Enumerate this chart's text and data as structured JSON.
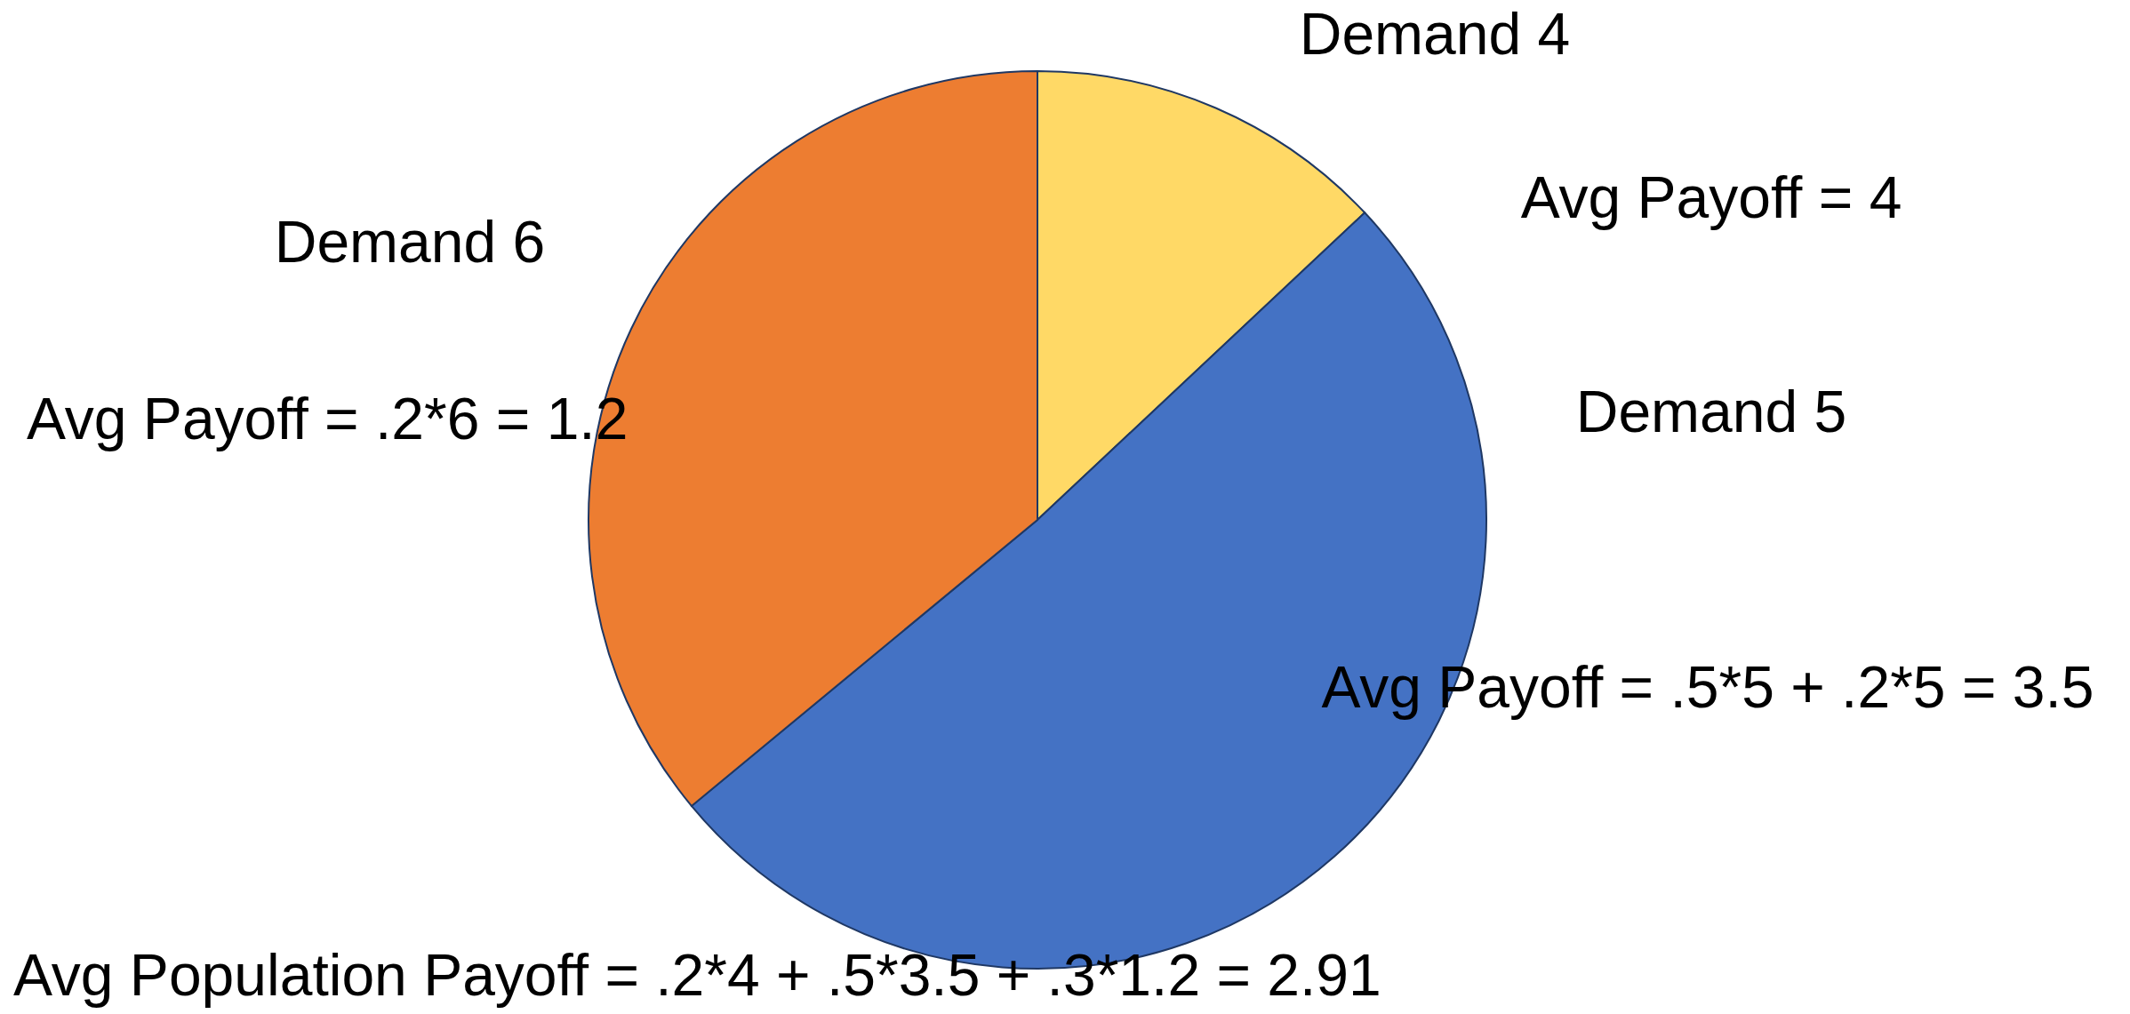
{
  "chart_data": {
    "type": "pie",
    "categories": [
      "Demand 4",
      "Demand 5",
      "Demand 6"
    ],
    "values": [
      13,
      51,
      36
    ],
    "colors": [
      "#ffd966",
      "#4472c4",
      "#ed7d31"
    ],
    "annotations": [
      "Avg Payoff = 4",
      "Avg Payoff = .5*5 + .2*5 = 3.5",
      "Avg Payoff =  .2*6 = 1.2",
      "Avg Population Payoff =  .2*4 + .5*3.5 + .3*1.2 = 2.91"
    ]
  }
}
